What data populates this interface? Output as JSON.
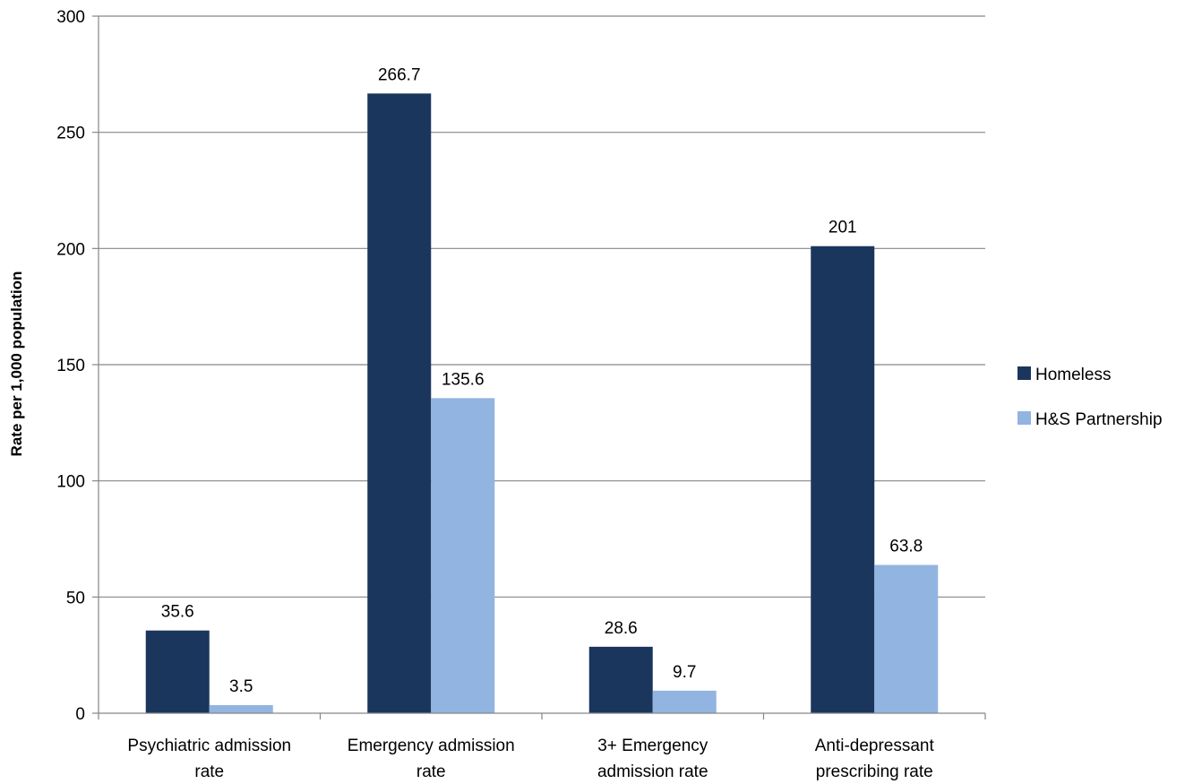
{
  "chart_data": {
    "type": "bar",
    "title": "",
    "xlabel": "",
    "ylabel": "Rate per 1,000 population",
    "ylim": [
      0,
      300
    ],
    "yticks": [
      0,
      50,
      100,
      150,
      200,
      250,
      300
    ],
    "grid": true,
    "legend_position": "right",
    "categories": [
      [
        "Psychiatric admission",
        "rate"
      ],
      [
        "Emergency admission",
        "rate"
      ],
      [
        "3+ Emergency",
        "admission rate"
      ],
      [
        "Anti-depressant",
        "prescribing rate"
      ]
    ],
    "series": [
      {
        "name": "Homeless",
        "color": "#1b365d",
        "values": [
          35.6,
          266.7,
          28.6,
          201
        ]
      },
      {
        "name": "H&S Partnership",
        "color": "#92b4e0",
        "values": [
          3.5,
          135.6,
          9.7,
          63.8
        ]
      }
    ],
    "data_labels": [
      [
        "35.6",
        "266.7",
        "28.6",
        "201"
      ],
      [
        "3.5",
        "135.6",
        "9.7",
        "63.8"
      ]
    ]
  }
}
